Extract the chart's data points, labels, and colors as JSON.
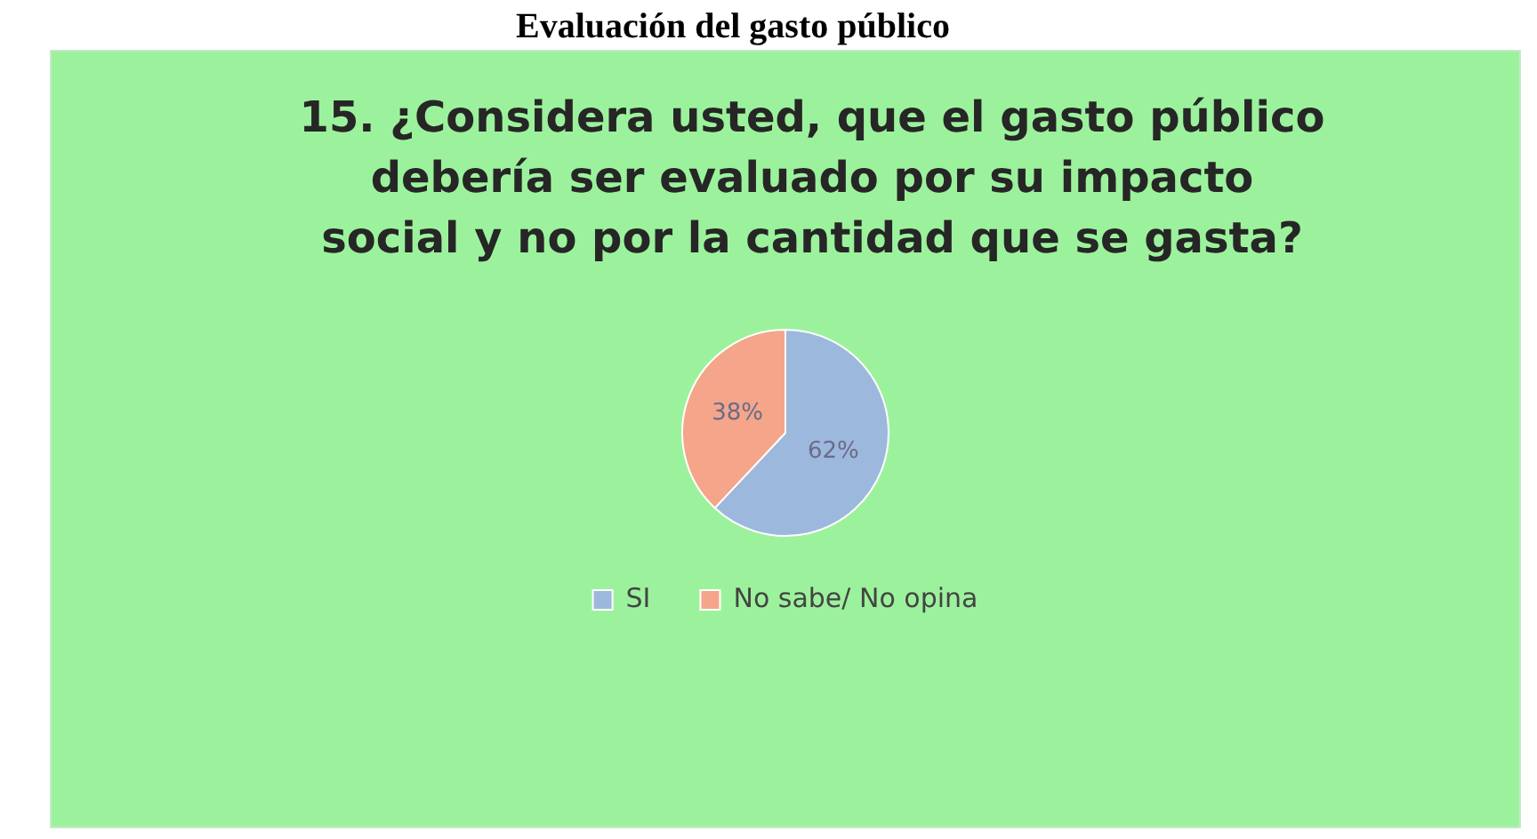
{
  "chart_data": {
    "type": "pie",
    "title": "Evaluación del gasto público",
    "subtitle": "15. ¿Considera usted, que el gasto público debería ser evaluado por su impacto social y no por la cantidad que se gasta?",
    "categories": [
      "SI",
      "No sabe/ No opina"
    ],
    "values": [
      62,
      38
    ],
    "colors": [
      "#9cb8dc",
      "#f4a58a"
    ],
    "value_labels": [
      "62%",
      "38%"
    ],
    "legend": "bottom"
  }
}
